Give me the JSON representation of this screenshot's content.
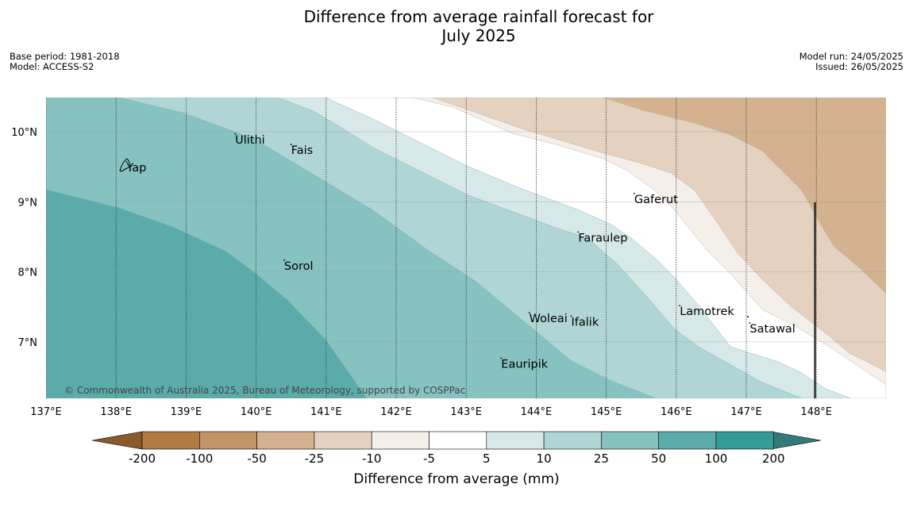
{
  "title_line1": "Difference from average rainfall forecast for",
  "title_line2": "July 2025",
  "meta": {
    "base_period": "Base period: 1981-2018",
    "model": "Model: ACCESS-S2",
    "model_run": "Model run: 24/05/2025",
    "issued": "Issued: 26/05/2025"
  },
  "map": {
    "lon_range": [
      137,
      149
    ],
    "lat_range": [
      6.2,
      10.5
    ],
    "lon_ticks": [
      "137°E",
      "138°E",
      "139°E",
      "140°E",
      "141°E",
      "142°E",
      "143°E",
      "144°E",
      "145°E",
      "146°E",
      "147°E",
      "148°E"
    ],
    "lat_ticks": [
      "10°N",
      "9°N",
      "8°N",
      "7°N"
    ],
    "copyright": "© Commonwealth of Australia 2025, Bureau of Meteorology, supported by COSPPac",
    "islands": [
      {
        "name": "Yap",
        "lon": 138.15,
        "lat": 9.5
      },
      {
        "name": "Ulithi",
        "lon": 139.7,
        "lat": 9.9
      },
      {
        "name": "Fais",
        "lon": 140.5,
        "lat": 9.75
      },
      {
        "name": "Sorol",
        "lon": 140.4,
        "lat": 8.1
      },
      {
        "name": "Gaferut",
        "lon": 145.4,
        "lat": 9.05
      },
      {
        "name": "Faraulep",
        "lon": 144.6,
        "lat": 8.5
      },
      {
        "name": "Woleai",
        "lon": 143.9,
        "lat": 7.35
      },
      {
        "name": "Ifalik",
        "lon": 144.5,
        "lat": 7.3
      },
      {
        "name": "Lamotrek",
        "lon": 146.05,
        "lat": 7.45
      },
      {
        "name": "Satawal",
        "lon": 147.05,
        "lat": 7.2
      },
      {
        "name": "Eauripik",
        "lon": 143.5,
        "lat": 6.7
      }
    ]
  },
  "colorbar": {
    "title": "Difference from average (mm)",
    "ticks": [
      "-200",
      "-100",
      "-50",
      "-25",
      "-10",
      "-5",
      "5",
      "10",
      "25",
      "50",
      "100",
      "200"
    ],
    "colors": {
      "below_min": "#8a5a2b",
      "c1": "#b07a42",
      "c2": "#c29468",
      "c3": "#d4b28f",
      "c4": "#e4d1bf",
      "c5": "#f4efe9",
      "c6": "#ffffff",
      "c7": "#d6e9e8",
      "c8": "#afd6d4",
      "c9": "#86c2c0",
      "c10": "#5babab",
      "c11": "#359b99",
      "above_max": "#327b7b"
    }
  }
}
